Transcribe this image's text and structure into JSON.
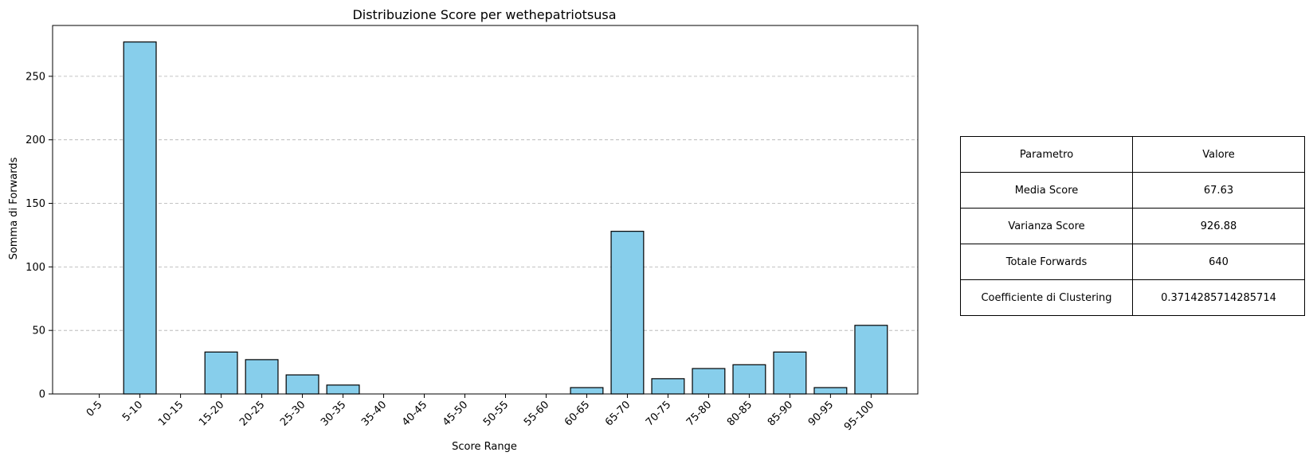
{
  "chart_data": {
    "type": "bar",
    "title": "Distribuzione Score per wethepatriotsusa",
    "xlabel": "Score Range",
    "ylabel": "Somma di Forwards",
    "categories": [
      "0-5",
      "5-10",
      "10-15",
      "15-20",
      "20-25",
      "25-30",
      "30-35",
      "35-40",
      "40-45",
      "45-50",
      "50-55",
      "55-60",
      "60-65",
      "65-70",
      "70-75",
      "75-80",
      "80-85",
      "85-90",
      "90-95",
      "95-100"
    ],
    "values": [
      0,
      277,
      0,
      33,
      27,
      15,
      7,
      0,
      0,
      0,
      0,
      0,
      5,
      128,
      12,
      20,
      23,
      33,
      5,
      54
    ],
    "ylim": [
      0,
      290
    ],
    "yticks": [
      0,
      50,
      100,
      150,
      200,
      250
    ],
    "grid": "y-dashed",
    "bar_color": "#87ceeb",
    "bar_edge_color": "#000000"
  },
  "table": {
    "header": [
      "Parametro",
      "Valore"
    ],
    "rows": [
      [
        "Media Score",
        "67.63"
      ],
      [
        "Varianza Score",
        "926.88"
      ],
      [
        "Totale Forwards",
        "640"
      ],
      [
        "Coefficiente di Clustering",
        "0.3714285714285714"
      ]
    ]
  }
}
